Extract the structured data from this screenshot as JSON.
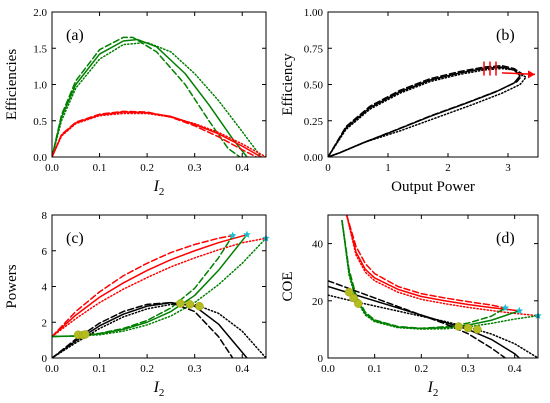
{
  "chart_data": [
    {
      "id": "a",
      "type": "line",
      "panel_label": "(a)",
      "xlabel": "I",
      "xlabel_sub": "2",
      "ylabel": "Efficiencies",
      "xlim": [
        0,
        0.45
      ],
      "ylim": [
        0,
        2.0
      ],
      "xticks": [
        0,
        0.1,
        0.2,
        0.3,
        0.4
      ],
      "xtick_labels": [
        "0.0",
        "0.1",
        "0.2",
        "0.3",
        "0.4"
      ],
      "yticks": [
        0,
        0.5,
        1.0,
        1.5,
        2.0
      ],
      "ytick_labels": [
        "0.0",
        "0.5",
        "1.0",
        "1.5",
        "2.0"
      ],
      "series": [
        {
          "color": "#008000",
          "style": "solid",
          "x": [
            0,
            0.02,
            0.05,
            0.1,
            0.15,
            0.18,
            0.22,
            0.28,
            0.33,
            0.38,
            0.41
          ],
          "y": [
            0,
            0.55,
            1.0,
            1.42,
            1.6,
            1.62,
            1.52,
            1.15,
            0.72,
            0.25,
            0.0
          ]
        },
        {
          "color": "#008000",
          "style": "dashed",
          "x": [
            0,
            0.02,
            0.05,
            0.1,
            0.15,
            0.17,
            0.22,
            0.28,
            0.33,
            0.37,
            0.395
          ],
          "y": [
            0,
            0.58,
            1.05,
            1.48,
            1.65,
            1.65,
            1.45,
            1.0,
            0.5,
            0.12,
            0.0
          ]
        },
        {
          "color": "#008000",
          "style": "dotted",
          "x": [
            0,
            0.02,
            0.05,
            0.1,
            0.15,
            0.2,
            0.25,
            0.3,
            0.35,
            0.4,
            0.44
          ],
          "y": [
            0,
            0.5,
            0.95,
            1.35,
            1.55,
            1.58,
            1.45,
            1.15,
            0.78,
            0.35,
            0.0
          ]
        },
        {
          "color": "#ff0000",
          "style": "solid",
          "x": [
            0,
            0.02,
            0.05,
            0.1,
            0.15,
            0.2,
            0.25,
            0.3,
            0.35,
            0.4,
            0.44
          ],
          "y": [
            0,
            0.3,
            0.47,
            0.58,
            0.62,
            0.61,
            0.56,
            0.45,
            0.32,
            0.15,
            0.0
          ]
        },
        {
          "color": "#ff0000",
          "style": "dashed",
          "x": [
            0,
            0.02,
            0.05,
            0.1,
            0.15,
            0.2,
            0.25,
            0.3,
            0.35,
            0.4,
            0.43
          ],
          "y": [
            0,
            0.31,
            0.48,
            0.59,
            0.63,
            0.62,
            0.55,
            0.43,
            0.28,
            0.1,
            0.0
          ]
        },
        {
          "color": "#ff0000",
          "style": "dotted",
          "x": [
            0,
            0.02,
            0.05,
            0.1,
            0.15,
            0.2,
            0.25,
            0.3,
            0.35,
            0.4,
            0.45
          ],
          "y": [
            0,
            0.29,
            0.46,
            0.57,
            0.6,
            0.6,
            0.55,
            0.46,
            0.34,
            0.18,
            0.0
          ]
        }
      ]
    },
    {
      "id": "b",
      "type": "line",
      "panel_label": "(b)",
      "xlabel": "Output Power",
      "xlabel_sub": "",
      "ylabel": "Efficiency",
      "xlim": [
        0,
        3.5
      ],
      "ylim": [
        0,
        1.0
      ],
      "xticks": [
        0,
        1,
        2,
        3
      ],
      "xtick_labels": [
        "0",
        "1",
        "2",
        "3"
      ],
      "yticks": [
        0,
        0.25,
        0.5,
        0.75,
        1.0
      ],
      "ytick_labels": [
        "0.00",
        "0.25",
        "0.50",
        "0.75",
        "1.00"
      ],
      "series": [
        {
          "color": "#000000",
          "style": "solid",
          "x": [
            0,
            0.3,
            0.7,
            1.2,
            1.7,
            2.2,
            2.6,
            2.9,
            3.1,
            3.2,
            3.1,
            2.8,
            2.3,
            1.7,
            1.1,
            0.6,
            0.2,
            0
          ],
          "y": [
            0,
            0.2,
            0.34,
            0.45,
            0.53,
            0.58,
            0.61,
            0.62,
            0.6,
            0.56,
            0.51,
            0.45,
            0.37,
            0.28,
            0.18,
            0.1,
            0.03,
            0
          ]
        },
        {
          "color": "#000000",
          "style": "dashed",
          "x": [
            0,
            0.3,
            0.7,
            1.2,
            1.7,
            2.2,
            2.6,
            2.9,
            3.1,
            3.25,
            3.15,
            2.85,
            2.35,
            1.75,
            1.15,
            0.6,
            0.2,
            0
          ],
          "y": [
            0,
            0.21,
            0.35,
            0.46,
            0.54,
            0.59,
            0.62,
            0.63,
            0.61,
            0.57,
            0.52,
            0.46,
            0.38,
            0.29,
            0.19,
            0.1,
            0.03,
            0
          ]
        },
        {
          "color": "#000000",
          "style": "dotted",
          "x": [
            0,
            0.3,
            0.7,
            1.2,
            1.7,
            2.2,
            2.6,
            2.9,
            3.1,
            3.3,
            3.2,
            2.9,
            2.4,
            1.8,
            1.2,
            0.6,
            0.2,
            0
          ],
          "y": [
            0,
            0.19,
            0.33,
            0.44,
            0.52,
            0.57,
            0.6,
            0.61,
            0.6,
            0.55,
            0.5,
            0.44,
            0.36,
            0.27,
            0.18,
            0.1,
            0.03,
            0
          ]
        }
      ],
      "red_ticks": [
        2.6,
        2.7,
        2.8
      ],
      "red_ticks_y": 0.61,
      "red_arrow": {
        "x1": 2.9,
        "y1": 0.58,
        "x2": 3.45,
        "y2": 0.57
      }
    },
    {
      "id": "c",
      "type": "line",
      "panel_label": "(c)",
      "xlabel": "I",
      "xlabel_sub": "2",
      "ylabel": "Powers",
      "xlim": [
        0,
        0.45
      ],
      "ylim": [
        0,
        8
      ],
      "xticks": [
        0,
        0.1,
        0.2,
        0.3,
        0.4
      ],
      "xtick_labels": [
        "0.0",
        "0.1",
        "0.2",
        "0.3",
        "0.4"
      ],
      "yticks": [
        0,
        2,
        4,
        6,
        8
      ],
      "ytick_labels": [
        "0",
        "2",
        "4",
        "6",
        "8"
      ],
      "series": [
        {
          "color": "#ff0000",
          "style": "solid",
          "x": [
            0,
            0.05,
            0.1,
            0.15,
            0.2,
            0.25,
            0.3,
            0.35,
            0.41
          ],
          "y": [
            1.2,
            2.4,
            3.4,
            4.2,
            4.9,
            5.5,
            6.0,
            6.45,
            6.9
          ]
        },
        {
          "color": "#ff0000",
          "style": "dashed",
          "x": [
            0,
            0.05,
            0.1,
            0.15,
            0.2,
            0.25,
            0.3,
            0.35,
            0.38
          ],
          "y": [
            1.2,
            2.6,
            3.7,
            4.6,
            5.3,
            5.9,
            6.35,
            6.7,
            6.85
          ]
        },
        {
          "color": "#ff0000",
          "style": "dotted",
          "x": [
            0,
            0.05,
            0.1,
            0.15,
            0.2,
            0.25,
            0.3,
            0.35,
            0.4,
            0.45
          ],
          "y": [
            1.2,
            2.2,
            3.1,
            3.85,
            4.5,
            5.1,
            5.6,
            6.05,
            6.45,
            6.7
          ]
        },
        {
          "color": "#008000",
          "style": "solid",
          "x": [
            0,
            0.05,
            0.1,
            0.15,
            0.2,
            0.25,
            0.3,
            0.35,
            0.41
          ],
          "y": [
            1.2,
            1.23,
            1.35,
            1.6,
            2.0,
            2.6,
            3.5,
            4.9,
            6.9
          ]
        },
        {
          "color": "#008000",
          "style": "dashed",
          "x": [
            0,
            0.05,
            0.1,
            0.15,
            0.2,
            0.25,
            0.3,
            0.35,
            0.38
          ],
          "y": [
            1.2,
            1.24,
            1.38,
            1.65,
            2.1,
            2.8,
            3.9,
            5.6,
            6.85
          ]
        },
        {
          "color": "#008000",
          "style": "dotted",
          "x": [
            0,
            0.05,
            0.1,
            0.15,
            0.2,
            0.25,
            0.3,
            0.35,
            0.4,
            0.45
          ],
          "y": [
            1.2,
            1.22,
            1.3,
            1.5,
            1.85,
            2.35,
            3.1,
            4.1,
            5.3,
            6.7
          ]
        },
        {
          "color": "#000000",
          "style": "solid",
          "x": [
            0,
            0.05,
            0.1,
            0.15,
            0.2,
            0.25,
            0.3,
            0.35,
            0.41
          ],
          "y": [
            0,
            0.95,
            1.8,
            2.45,
            2.9,
            3.1,
            2.9,
            1.9,
            0
          ]
        },
        {
          "color": "#000000",
          "style": "dashed",
          "x": [
            0,
            0.05,
            0.1,
            0.15,
            0.2,
            0.25,
            0.3,
            0.35,
            0.38
          ],
          "y": [
            0,
            1.05,
            1.95,
            2.6,
            3.0,
            3.1,
            2.6,
            1.2,
            0
          ]
        },
        {
          "color": "#000000",
          "style": "dotted",
          "x": [
            0,
            0.05,
            0.1,
            0.15,
            0.2,
            0.25,
            0.3,
            0.35,
            0.4,
            0.45
          ],
          "y": [
            0,
            0.85,
            1.65,
            2.3,
            2.75,
            3.0,
            3.0,
            2.5,
            1.5,
            0
          ]
        }
      ],
      "markers_yellow": [
        {
          "x": 0.055,
          "y": 1.3
        },
        {
          "x": 0.065,
          "y": 1.28
        },
        {
          "x": 0.07,
          "y": 1.32
        },
        {
          "x": 0.27,
          "y": 3.05
        },
        {
          "x": 0.29,
          "y": 3.0
        },
        {
          "x": 0.31,
          "y": 2.9
        }
      ],
      "markers_cyan": [
        {
          "x": 0.38,
          "y": 6.85
        },
        {
          "x": 0.41,
          "y": 6.9
        },
        {
          "x": 0.45,
          "y": 6.7
        }
      ]
    },
    {
      "id": "d",
      "type": "line",
      "panel_label": "(d)",
      "xlabel": "I",
      "xlabel_sub": "2",
      "ylabel": "COE",
      "xlim": [
        0,
        0.45
      ],
      "ylim": [
        0,
        50
      ],
      "xticks": [
        0,
        0.1,
        0.2,
        0.3,
        0.4
      ],
      "xtick_labels": [
        "0.0",
        "0.1",
        "0.2",
        "0.3",
        "0.4"
      ],
      "yticks": [
        0,
        20,
        40
      ],
      "ytick_labels": [
        "0",
        "20",
        "40"
      ],
      "series": [
        {
          "color": "#ff0000",
          "style": "solid",
          "x": [
            0.04,
            0.06,
            0.08,
            0.1,
            0.15,
            0.2,
            0.25,
            0.3,
            0.35,
            0.41
          ],
          "y": [
            50,
            37,
            31,
            28,
            24,
            21.5,
            20,
            18.7,
            17.6,
            16.5
          ]
        },
        {
          "color": "#ff0000",
          "style": "dashed",
          "x": [
            0.04,
            0.06,
            0.08,
            0.1,
            0.15,
            0.2,
            0.25,
            0.3,
            0.35,
            0.38
          ],
          "y": [
            50,
            39,
            33,
            29.5,
            25,
            22.5,
            21,
            19.7,
            18.5,
            17.5
          ]
        },
        {
          "color": "#ff0000",
          "style": "dotted",
          "x": [
            0.04,
            0.06,
            0.08,
            0.1,
            0.15,
            0.2,
            0.25,
            0.3,
            0.35,
            0.4,
            0.45
          ],
          "y": [
            50,
            36,
            30,
            27,
            23,
            20.5,
            19,
            17.7,
            16.6,
            15.6,
            14.8
          ]
        },
        {
          "color": "#008000",
          "style": "solid",
          "x": [
            0.03,
            0.045,
            0.06,
            0.08,
            0.1,
            0.15,
            0.2,
            0.25,
            0.3,
            0.35,
            0.41
          ],
          "y": [
            48,
            30,
            21,
            15.5,
            13,
            10.8,
            10.3,
            10.6,
            11.5,
            13.2,
            16.5
          ]
        },
        {
          "color": "#008000",
          "style": "dashed",
          "x": [
            0.03,
            0.045,
            0.06,
            0.08,
            0.1,
            0.15,
            0.2,
            0.25,
            0.3,
            0.35,
            0.38
          ],
          "y": [
            48,
            31,
            22,
            16,
            13.3,
            11,
            10.4,
            10.9,
            12.2,
            14.6,
            17.5
          ]
        },
        {
          "color": "#008000",
          "style": "dotted",
          "x": [
            0.03,
            0.045,
            0.06,
            0.08,
            0.1,
            0.15,
            0.2,
            0.25,
            0.3,
            0.35,
            0.4,
            0.45
          ],
          "y": [
            48,
            29,
            20.5,
            15,
            12.7,
            10.6,
            10.1,
            10.2,
            10.9,
            12.1,
            13.6,
            14.8
          ]
        },
        {
          "color": "#000000",
          "style": "solid",
          "x": [
            0,
            0.05,
            0.1,
            0.15,
            0.2,
            0.25,
            0.3,
            0.35,
            0.4,
            0.41
          ],
          "y": [
            25,
            22.5,
            20,
            17.5,
            15,
            12.5,
            10,
            6.5,
            1.5,
            0
          ]
        },
        {
          "color": "#000000",
          "style": "dashed",
          "x": [
            0,
            0.05,
            0.1,
            0.15,
            0.2,
            0.25,
            0.3,
            0.35,
            0.38
          ],
          "y": [
            27,
            24,
            21,
            18,
            15,
            12,
            8.5,
            3.5,
            0
          ]
        },
        {
          "color": "#000000",
          "style": "dotted",
          "x": [
            0,
            0.05,
            0.1,
            0.15,
            0.2,
            0.25,
            0.3,
            0.35,
            0.4,
            0.45
          ],
          "y": [
            22,
            20,
            18.2,
            16.4,
            14.6,
            12.8,
            10.8,
            8.4,
            5.0,
            0
          ]
        }
      ],
      "markers_yellow": [
        {
          "x": 0.045,
          "y": 23
        },
        {
          "x": 0.055,
          "y": 21
        },
        {
          "x": 0.065,
          "y": 19
        },
        {
          "x": 0.28,
          "y": 11
        },
        {
          "x": 0.3,
          "y": 10.5
        },
        {
          "x": 0.32,
          "y": 10
        }
      ],
      "markers_cyan": [
        {
          "x": 0.38,
          "y": 17.5
        },
        {
          "x": 0.41,
          "y": 16.5
        },
        {
          "x": 0.45,
          "y": 14.8
        }
      ]
    }
  ]
}
